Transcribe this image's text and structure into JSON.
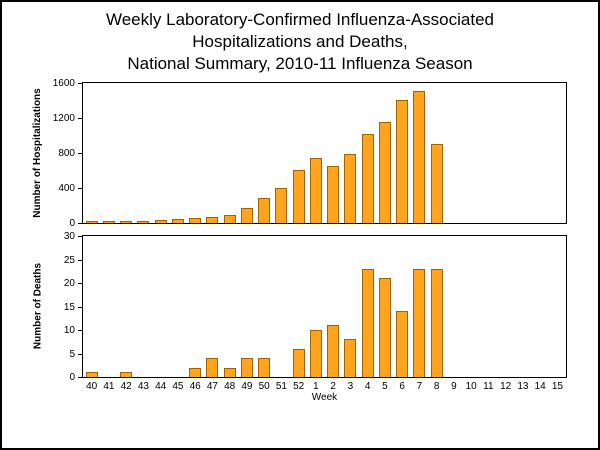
{
  "title": {
    "line1": "Weekly Laboratory-Confirmed Influenza-Associated",
    "line2": "Hospitalizations and Deaths,",
    "line3": "National Summary, 2010-11 Influenza Season"
  },
  "colors": {
    "bar_fill": "#FFA41C",
    "bar_border": "#9C6500"
  },
  "chart_data": [
    {
      "type": "bar",
      "title": "Weekly Laboratory-Confirmed Influenza-Associated Hospitalizations",
      "ylabel": "Number of Hospitalizations",
      "xlabel": "",
      "ylim": [
        0,
        1600
      ],
      "yticks": [
        0,
        400,
        800,
        1200,
        1600
      ],
      "grid": false,
      "legend": "none",
      "categories": [
        "40",
        "41",
        "42",
        "43",
        "44",
        "45",
        "46",
        "47",
        "48",
        "49",
        "50",
        "51",
        "52",
        "1",
        "2",
        "3",
        "4",
        "5",
        "6",
        "7",
        "8",
        "9",
        "10",
        "11",
        "12",
        "13",
        "14",
        "15"
      ],
      "values": [
        15,
        20,
        25,
        25,
        35,
        50,
        55,
        70,
        90,
        170,
        280,
        400,
        610,
        740,
        650,
        790,
        1020,
        1150,
        1410,
        1510,
        900,
        0,
        0,
        0,
        0,
        0,
        0,
        0
      ]
    },
    {
      "type": "bar",
      "title": "Weekly Laboratory-Confirmed Influenza-Associated Deaths",
      "ylabel": "Number of Deaths",
      "xlabel": "Week",
      "ylim": [
        0,
        30
      ],
      "yticks": [
        0,
        5,
        10,
        15,
        20,
        25,
        30
      ],
      "grid": false,
      "legend": "none",
      "categories": [
        "40",
        "41",
        "42",
        "43",
        "44",
        "45",
        "46",
        "47",
        "48",
        "49",
        "50",
        "51",
        "52",
        "1",
        "2",
        "3",
        "4",
        "5",
        "6",
        "7",
        "8",
        "9",
        "10",
        "11",
        "12",
        "13",
        "14",
        "15"
      ],
      "values": [
        1,
        0,
        1,
        0,
        0,
        0,
        2,
        4,
        2,
        4,
        4,
        0,
        6,
        10,
        11,
        8,
        23,
        21,
        14,
        23,
        23,
        0,
        0,
        0,
        0,
        0,
        0,
        0
      ]
    }
  ]
}
